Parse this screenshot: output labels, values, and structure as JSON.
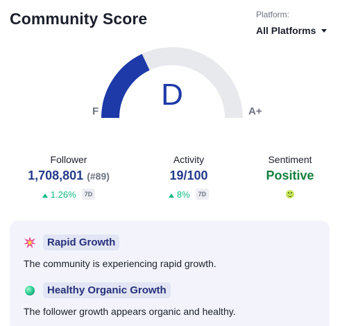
{
  "header": {
    "title": "Community Score",
    "platform_label": "Platform:",
    "platform_value": "All Platforms"
  },
  "gauge": {
    "grade": "D",
    "min_label": "F",
    "max_label": "A+",
    "fill_fraction": 0.36,
    "fill_color": "#1e3aa8",
    "track_color": "#e8e9ec"
  },
  "stats": {
    "follower": {
      "label": "Follower",
      "value": "1,708,801",
      "rank": "(#89)",
      "change": "1.26%",
      "period": "7D"
    },
    "activity": {
      "label": "Activity",
      "value": "19/100",
      "change": "8%",
      "period": "7D"
    },
    "sentiment": {
      "label": "Sentiment",
      "value": "Positive",
      "icon": "smiley-icon"
    }
  },
  "insights": [
    {
      "icon": "burst-icon",
      "title": "Rapid Growth",
      "description": "The community is experiencing rapid growth."
    },
    {
      "icon": "green-orb-icon",
      "title": "Healthy Organic Growth",
      "description": "The follower growth appears organic and healthy."
    }
  ],
  "colors": {
    "accent": "#1e3aa8",
    "positive": "#10b981",
    "sentiment": "#15803d"
  }
}
